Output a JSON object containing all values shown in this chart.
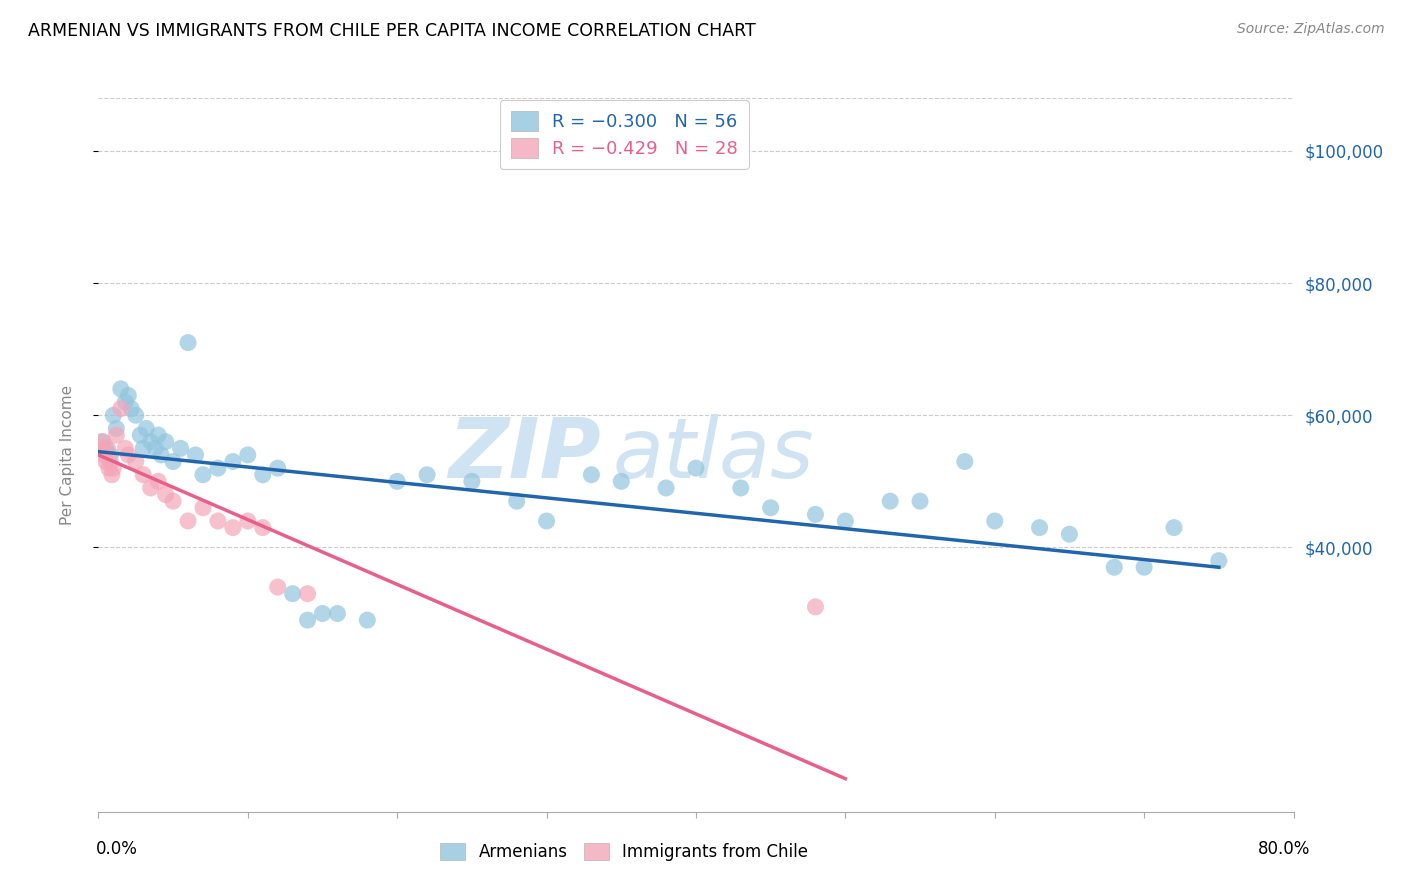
{
  "title": "ARMENIAN VS IMMIGRANTS FROM CHILE PER CAPITA INCOME CORRELATION CHART",
  "source": "Source: ZipAtlas.com",
  "ylabel": "Per Capita Income",
  "ytick_labels": [
    "$40,000",
    "$60,000",
    "$80,000",
    "$100,000"
  ],
  "ytick_values": [
    40000,
    60000,
    80000,
    100000
  ],
  "watermark_zip": "ZIP",
  "watermark_atlas": "atlas",
  "blue_scatter_color": "#92c5de",
  "pink_scatter_color": "#f4a6b8",
  "blue_line_color": "#2166ac",
  "pink_line_color": "#e8608a",
  "ytick_color": "#2166ac",
  "legend_blue_patch": "#92c5de",
  "legend_pink_patch": "#f4a6b8",
  "legend_blue_text_r": "R = ",
  "legend_blue_r_val": "-0.300",
  "legend_blue_n": "N = 56",
  "legend_pink_text_r": "R = ",
  "legend_pink_r_val": "-0.429",
  "legend_pink_n": "N = 28",
  "armenians_x": [
    0.3,
    0.5,
    0.8,
    1.0,
    1.2,
    1.5,
    1.8,
    2.0,
    2.2,
    2.5,
    2.8,
    3.0,
    3.2,
    3.5,
    3.8,
    4.0,
    4.2,
    4.5,
    5.0,
    5.5,
    6.0,
    6.5,
    7.0,
    8.0,
    9.0,
    10.0,
    11.0,
    12.0,
    13.0,
    14.0,
    15.0,
    16.0,
    18.0,
    20.0,
    22.0,
    25.0,
    28.0,
    30.0,
    33.0,
    35.0,
    38.0,
    40.0,
    43.0,
    45.0,
    48.0,
    50.0,
    53.0,
    55.0,
    58.0,
    60.0,
    63.0,
    65.0,
    68.0,
    70.0,
    72.0,
    75.0
  ],
  "armenians_y": [
    56000,
    55000,
    54000,
    60000,
    58000,
    64000,
    62000,
    63000,
    61000,
    60000,
    57000,
    55000,
    58000,
    56000,
    55000,
    57000,
    54000,
    56000,
    53000,
    55000,
    71000,
    54000,
    51000,
    52000,
    53000,
    54000,
    51000,
    52000,
    33000,
    29000,
    30000,
    30000,
    29000,
    50000,
    51000,
    50000,
    47000,
    44000,
    51000,
    50000,
    49000,
    52000,
    49000,
    46000,
    45000,
    44000,
    47000,
    47000,
    53000,
    44000,
    43000,
    42000,
    37000,
    37000,
    43000,
    38000
  ],
  "chile_x": [
    0.2,
    0.3,
    0.4,
    0.5,
    0.6,
    0.7,
    0.8,
    0.9,
    1.0,
    1.2,
    1.5,
    1.8,
    2.0,
    2.5,
    3.0,
    3.5,
    4.0,
    4.5,
    5.0,
    6.0,
    7.0,
    8.0,
    9.0,
    10.0,
    11.0,
    12.0,
    14.0,
    48.0
  ],
  "chile_y": [
    56000,
    55000,
    54000,
    53000,
    55000,
    52000,
    53000,
    51000,
    52000,
    57000,
    61000,
    55000,
    54000,
    53000,
    51000,
    49000,
    50000,
    48000,
    47000,
    44000,
    46000,
    44000,
    43000,
    44000,
    43000,
    34000,
    33000,
    31000
  ],
  "blue_line_x": [
    0,
    75
  ],
  "blue_line_y": [
    54500,
    37000
  ],
  "pink_line_x": [
    0,
    50
  ],
  "pink_line_y": [
    54000,
    5000
  ],
  "xlim": [
    0,
    80
  ],
  "ylim": [
    0,
    108000
  ],
  "xticks": [
    0,
    10,
    20,
    30,
    40,
    50,
    60,
    70,
    80
  ]
}
